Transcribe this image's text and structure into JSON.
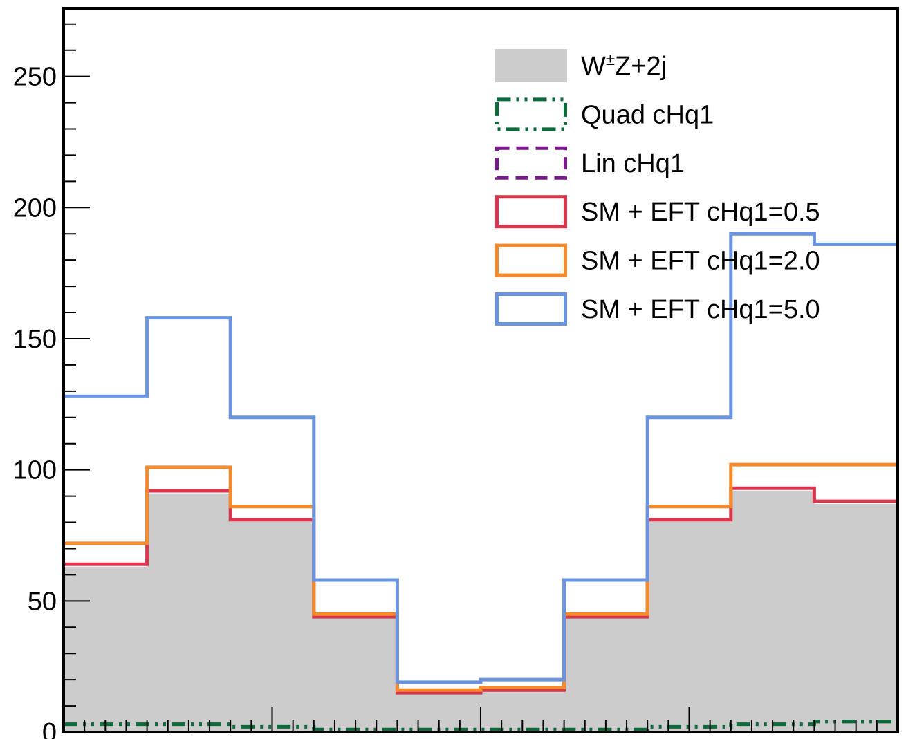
{
  "chart_data": {
    "type": "histogram",
    "title": "",
    "xlabel": "",
    "ylabel": "",
    "ylim": [
      0,
      276
    ],
    "yticks": [
      0,
      50,
      100,
      150,
      200,
      250
    ],
    "n_bins": 10,
    "grid": false,
    "legend_position": "top-right",
    "series": [
      {
        "name": "W±Z+2j",
        "label_base": "W",
        "label_sup": "±",
        "label_rest": "Z+2j",
        "style": "filled",
        "color": "#cccccc",
        "values": [
          63,
          91,
          81,
          44,
          15,
          16,
          44,
          81,
          92,
          87
        ]
      },
      {
        "name": "Quad cHq1",
        "style": "dashdot",
        "color": "#0b6b3a",
        "values": [
          3,
          3,
          2,
          1,
          1,
          1,
          1,
          2,
          3,
          4
        ]
      },
      {
        "name": "Lin cHq1",
        "style": "dashed",
        "color": "#7a1a8a",
        "values": [
          -1,
          -1,
          -1,
          -1,
          -1,
          -1,
          -1,
          -1,
          -1,
          -1
        ]
      },
      {
        "name": "SM + EFT cHq1=0.5",
        "style": "solid",
        "color": "#d9364e",
        "values": [
          64,
          92,
          81,
          44,
          15,
          16,
          44,
          81,
          93,
          88
        ]
      },
      {
        "name": "SM + EFT cHq1=2.0",
        "style": "solid",
        "color": "#f58a2c",
        "values": [
          72,
          101,
          86,
          45,
          16,
          17,
          45,
          86,
          102,
          102
        ]
      },
      {
        "name": "SM + EFT cHq1=5.0",
        "style": "solid",
        "color": "#6a93e0",
        "values": [
          128,
          158,
          120,
          58,
          19,
          20,
          58,
          120,
          190,
          186
        ]
      }
    ]
  }
}
